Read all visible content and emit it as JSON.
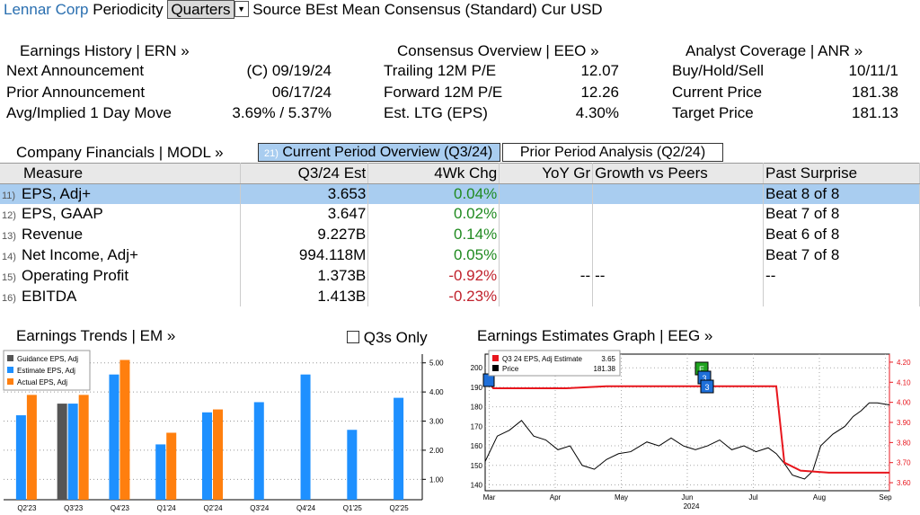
{
  "header": {
    "company": "Lennar Corp",
    "periodicity_label": "Periodicity",
    "periodicity_value": "Quarters",
    "source_text": "Source BEst Mean Consensus (Standard) Cur USD"
  },
  "earnings_history": {
    "title": "Earnings History | ERN »",
    "rows": [
      {
        "label": "Next Announcement",
        "value": "(C)  09/19/24"
      },
      {
        "label": "Prior Announcement",
        "value": "06/17/24"
      },
      {
        "label": "Avg/Implied 1 Day Move",
        "value": "3.69% / 5.37%"
      }
    ]
  },
  "consensus_overview": {
    "title": "Consensus Overview | EEO »",
    "rows": [
      {
        "label": "Trailing 12M P/E",
        "value": "12.07"
      },
      {
        "label": "Forward 12M P/E",
        "value": "12.26"
      },
      {
        "label": "Est. LTG (EPS)",
        "value": "4.30%"
      }
    ]
  },
  "analyst_coverage": {
    "title": "Analyst Coverage | ANR »",
    "rows": [
      {
        "label": "Buy/Hold/Sell",
        "value": "10/11/1"
      },
      {
        "label": "Current Price",
        "value": "181.38"
      },
      {
        "label": "Target Price",
        "value": "181.13"
      }
    ]
  },
  "financials": {
    "title": "Company Financials | MODL »",
    "tab_current_num": "21)",
    "tab_current": "Current Period Overview (Q3/24)",
    "tab_prior": "Prior Period Analysis (Q2/24)",
    "columns": [
      "Measure",
      "Q3/24 Est",
      "4Wk Chg",
      "YoY Gr",
      "Growth vs Peers",
      "Past Surprise"
    ],
    "rows": [
      {
        "num": "11)",
        "measure": "EPS, Adj+",
        "est": "3.653",
        "chg": "0.04%",
        "yoy": "",
        "peers": "",
        "surprise": "Beat 8 of 8"
      },
      {
        "num": "12)",
        "measure": "EPS, GAAP",
        "est": "3.647",
        "chg": "0.02%",
        "yoy": "",
        "peers": "",
        "surprise": "Beat 7 of 8"
      },
      {
        "num": "13)",
        "measure": "Revenue",
        "est": "9.227B",
        "chg": "0.14%",
        "yoy": "",
        "peers": "",
        "surprise": "Beat 6 of 8"
      },
      {
        "num": "14)",
        "measure": "Net Income, Adj+",
        "est": "994.118M",
        "chg": "0.05%",
        "yoy": "",
        "peers": "",
        "surprise": "Beat 7 of 8"
      },
      {
        "num": "15)",
        "measure": "Operating Profit",
        "est": "1.373B",
        "chg": "-0.92%",
        "yoy": "--",
        "peers": "--",
        "surprise": "--"
      },
      {
        "num": "16)",
        "measure": "EBITDA",
        "est": "1.413B",
        "chg": "-0.23%",
        "yoy": "",
        "peers": "",
        "surprise": ""
      }
    ]
  },
  "trends": {
    "title": "Earnings Trends | EM »",
    "q3_only_label": "Q3s Only"
  },
  "estimates_graph": {
    "title": "Earnings Estimates Graph | EEG »"
  },
  "colors": {
    "guidance": "#555555",
    "estimate": "#1e90ff",
    "actual": "#ff7f0e",
    "price": "#000000",
    "estimate_line": "#e8161d",
    "selected_row": "#a9cdf0"
  },
  "chart_data": [
    {
      "type": "bar",
      "categories": [
        "Q2'23",
        "Q3'23",
        "Q4'23",
        "Q1'24",
        "Q2'24",
        "Q3'24",
        "Q4'24",
        "Q1'25",
        "Q2'25"
      ],
      "series": [
        {
          "name": "Guidance EPS, Adj",
          "values": [
            null,
            3.6,
            null,
            null,
            null,
            null,
            null,
            null,
            null
          ]
        },
        {
          "name": "Estimate EPS, Adj",
          "values": [
            3.2,
            3.6,
            4.6,
            2.2,
            3.3,
            3.65,
            4.6,
            2.7,
            3.8
          ]
        },
        {
          "name": "Actual EPS, Adj",
          "values": [
            3.9,
            3.9,
            5.1,
            2.6,
            3.4,
            null,
            null,
            null,
            null
          ]
        }
      ],
      "ylim": [
        0.3,
        5.3
      ],
      "yticks": [
        "1.00",
        "2.00",
        "3.00",
        "4.00",
        "5.00"
      ],
      "legend": "top-left"
    },
    {
      "type": "line",
      "x_labels": [
        "Mar",
        "Apr",
        "May",
        "Jun",
        "Jul",
        "Aug",
        "Sep"
      ],
      "x_sublabel": "2024",
      "left_axis": {
        "ticks": [
          "140",
          "150",
          "160",
          "170",
          "180",
          "190",
          "200"
        ],
        "range": [
          137,
          207
        ]
      },
      "right_axis": {
        "ticks": [
          "3.60",
          "3.70",
          "3.80",
          "3.90",
          "4.00",
          "4.10",
          "4.20"
        ],
        "range": [
          3.56,
          4.24
        ]
      },
      "series": [
        {
          "name": "Q3 24 EPS, Adj Estimate",
          "last": "3.65",
          "axis": "right",
          "points": [
            [
              0,
              4.13
            ],
            [
              0.02,
              4.07
            ],
            [
              0.1,
              4.07
            ],
            [
              0.2,
              4.07
            ],
            [
              0.3,
              4.08
            ],
            [
              0.5,
              4.08
            ],
            [
              0.63,
              4.08
            ],
            [
              0.72,
              4.08
            ],
            [
              0.74,
              3.7
            ],
            [
              0.78,
              3.66
            ],
            [
              0.85,
              3.65
            ],
            [
              1.0,
              3.65
            ]
          ]
        },
        {
          "name": "Price",
          "last": "181.38",
          "axis": "left",
          "points": [
            [
              0,
              152
            ],
            [
              0.03,
              165
            ],
            [
              0.06,
              168
            ],
            [
              0.09,
              173
            ],
            [
              0.12,
              165
            ],
            [
              0.15,
              163
            ],
            [
              0.18,
              158
            ],
            [
              0.21,
              160
            ],
            [
              0.24,
              150
            ],
            [
              0.27,
              148
            ],
            [
              0.3,
              153
            ],
            [
              0.33,
              156
            ],
            [
              0.36,
              157
            ],
            [
              0.4,
              162
            ],
            [
              0.43,
              160
            ],
            [
              0.46,
              164
            ],
            [
              0.49,
              160
            ],
            [
              0.52,
              158
            ],
            [
              0.55,
              160
            ],
            [
              0.58,
              163
            ],
            [
              0.61,
              158
            ],
            [
              0.64,
              160
            ],
            [
              0.67,
              157
            ],
            [
              0.7,
              159
            ],
            [
              0.72,
              156
            ],
            [
              0.74,
              151
            ],
            [
              0.76,
              145
            ],
            [
              0.79,
              143
            ],
            [
              0.81,
              147
            ],
            [
              0.83,
              160
            ],
            [
              0.86,
              166
            ],
            [
              0.89,
              170
            ],
            [
              0.91,
              175
            ],
            [
              0.93,
              178
            ],
            [
              0.95,
              182
            ],
            [
              0.97,
              182
            ],
            [
              1.0,
              181
            ]
          ]
        }
      ],
      "markers": [
        "E",
        "3",
        "3"
      ]
    }
  ]
}
